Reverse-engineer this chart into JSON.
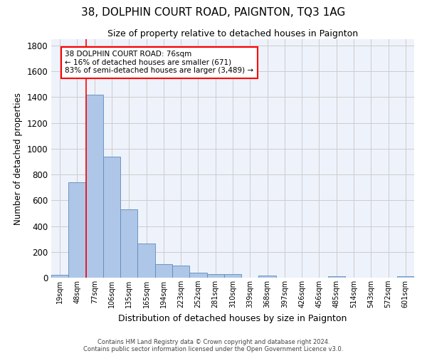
{
  "title1": "38, DOLPHIN COURT ROAD, PAIGNTON, TQ3 1AG",
  "title2": "Size of property relative to detached houses in Paignton",
  "xlabel": "Distribution of detached houses by size in Paignton",
  "ylabel": "Number of detached properties",
  "categories": [
    "19sqm",
    "48sqm",
    "77sqm",
    "106sqm",
    "135sqm",
    "165sqm",
    "194sqm",
    "223sqm",
    "252sqm",
    "281sqm",
    "310sqm",
    "339sqm",
    "368sqm",
    "397sqm",
    "426sqm",
    "456sqm",
    "485sqm",
    "514sqm",
    "543sqm",
    "572sqm",
    "601sqm"
  ],
  "values": [
    22,
    740,
    1420,
    940,
    530,
    265,
    105,
    93,
    40,
    28,
    28,
    0,
    15,
    0,
    0,
    0,
    13,
    0,
    0,
    0,
    13
  ],
  "bar_color": "#aec6e8",
  "bar_edge_color": "#5b8db8",
  "grid_color": "#cccccc",
  "background_color": "#eef2fb",
  "red_line_x": 1.5,
  "annotation_title": "38 DOLPHIN COURT ROAD: 76sqm",
  "annotation_line1": "← 16% of detached houses are smaller (671)",
  "annotation_line2": "83% of semi-detached houses are larger (3,489) →",
  "footer1": "Contains HM Land Registry data © Crown copyright and database right 2024.",
  "footer2": "Contains public sector information licensed under the Open Government Licence v3.0.",
  "ylim": [
    0,
    1850
  ],
  "yticks": [
    0,
    200,
    400,
    600,
    800,
    1000,
    1200,
    1400,
    1600,
    1800
  ]
}
